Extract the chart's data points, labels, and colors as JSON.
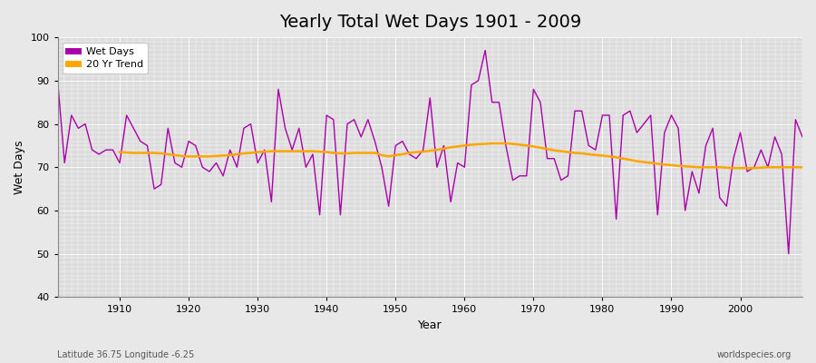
{
  "title": "Yearly Total Wet Days 1901 - 2009",
  "xlabel": "Year",
  "ylabel": "Wet Days",
  "years": [
    1901,
    1902,
    1903,
    1904,
    1905,
    1906,
    1907,
    1908,
    1909,
    1910,
    1911,
    1912,
    1913,
    1914,
    1915,
    1916,
    1917,
    1918,
    1919,
    1920,
    1921,
    1922,
    1923,
    1924,
    1925,
    1926,
    1927,
    1928,
    1929,
    1930,
    1931,
    1932,
    1933,
    1934,
    1935,
    1936,
    1937,
    1938,
    1939,
    1940,
    1941,
    1942,
    1943,
    1944,
    1945,
    1946,
    1947,
    1948,
    1949,
    1950,
    1951,
    1952,
    1953,
    1954,
    1955,
    1956,
    1957,
    1958,
    1959,
    1960,
    1961,
    1962,
    1963,
    1964,
    1965,
    1966,
    1967,
    1968,
    1969,
    1970,
    1971,
    1972,
    1973,
    1974,
    1975,
    1976,
    1977,
    1978,
    1979,
    1980,
    1981,
    1982,
    1983,
    1984,
    1985,
    1986,
    1987,
    1988,
    1989,
    1990,
    1991,
    1992,
    1993,
    1994,
    1995,
    1996,
    1997,
    1998,
    1999,
    2000,
    2001,
    2002,
    2003,
    2004,
    2005,
    2006,
    2007,
    2008,
    2009
  ],
  "wet_days": [
    90,
    71,
    82,
    79,
    80,
    74,
    73,
    74,
    74,
    71,
    82,
    79,
    76,
    75,
    65,
    66,
    79,
    71,
    70,
    76,
    75,
    70,
    69,
    71,
    68,
    74,
    70,
    79,
    80,
    71,
    74,
    62,
    88,
    79,
    74,
    79,
    70,
    73,
    59,
    82,
    81,
    59,
    80,
    81,
    77,
    81,
    76,
    70,
    61,
    75,
    76,
    73,
    72,
    74,
    86,
    70,
    75,
    62,
    71,
    70,
    89,
    90,
    97,
    85,
    85,
    75,
    67,
    68,
    68,
    88,
    85,
    72,
    72,
    67,
    68,
    83,
    83,
    75,
    74,
    82,
    82,
    58,
    82,
    83,
    78,
    80,
    82,
    59,
    78,
    82,
    79,
    60,
    69,
    64,
    75,
    79,
    63,
    61,
    72,
    78,
    69,
    70,
    74,
    70,
    77,
    73,
    50,
    81,
    77
  ],
  "trend_years": [
    1910,
    1911,
    1912,
    1913,
    1914,
    1915,
    1916,
    1917,
    1918,
    1919,
    1920,
    1921,
    1922,
    1923,
    1924,
    1925,
    1926,
    1927,
    1928,
    1929,
    1930,
    1931,
    1932,
    1933,
    1934,
    1935,
    1936,
    1937,
    1938,
    1939,
    1940,
    1941,
    1942,
    1943,
    1944,
    1945,
    1946,
    1947,
    1948,
    1949,
    1950,
    1951,
    1952,
    1953,
    1954,
    1955,
    1956,
    1957,
    1958,
    1959,
    1960,
    1961,
    1962,
    1963,
    1964,
    1965,
    1966,
    1967,
    1968,
    1969,
    1970,
    1971,
    1972,
    1973,
    1974,
    1975,
    1976,
    1977,
    1978,
    1979,
    1980,
    1981,
    1982,
    1983,
    1984,
    1985,
    1986,
    1987,
    1988,
    1989,
    1990,
    1991,
    1992,
    1993,
    1994,
    1995,
    1996,
    1997,
    1998,
    1999,
    2000,
    2001,
    2002,
    2003,
    2004,
    2005,
    2006,
    2007,
    2008,
    2009
  ],
  "trend_values": [
    73.5,
    73.4,
    73.3,
    73.3,
    73.3,
    73.3,
    73.2,
    73.0,
    72.8,
    72.6,
    72.5,
    72.5,
    72.5,
    72.5,
    72.6,
    72.7,
    72.8,
    73.0,
    73.2,
    73.3,
    73.5,
    73.6,
    73.7,
    73.7,
    73.7,
    73.7,
    73.7,
    73.7,
    73.7,
    73.6,
    73.5,
    73.3,
    73.2,
    73.2,
    73.3,
    73.3,
    73.3,
    73.3,
    72.8,
    72.5,
    72.8,
    73.0,
    73.3,
    73.5,
    73.6,
    73.8,
    74.0,
    74.3,
    74.6,
    74.8,
    75.0,
    75.2,
    75.3,
    75.4,
    75.5,
    75.5,
    75.5,
    75.4,
    75.2,
    75.0,
    74.8,
    74.5,
    74.2,
    73.9,
    73.7,
    73.5,
    73.3,
    73.2,
    73.0,
    72.8,
    72.7,
    72.5,
    72.3,
    72.0,
    71.7,
    71.4,
    71.2,
    71.0,
    70.8,
    70.6,
    70.5,
    70.3,
    70.2,
    70.1,
    70.0,
    70.0,
    70.0,
    70.0,
    69.9,
    69.8,
    69.8,
    69.8,
    69.8,
    69.9,
    70.0,
    70.0,
    70.0,
    70.0,
    70.0,
    70.0
  ],
  "wet_days_color": "#aa00aa",
  "trend_color": "#ffa500",
  "bg_color": "#e8e8e8",
  "plot_bg_color": "#dcdcdc",
  "grid_color": "#ffffff",
  "ylim": [
    40,
    100
  ],
  "xlim": [
    1901,
    2009
  ],
  "yticks": [
    40,
    50,
    60,
    70,
    80,
    90,
    100
  ],
  "xticks": [
    1910,
    1920,
    1930,
    1940,
    1950,
    1960,
    1970,
    1980,
    1990,
    2000
  ],
  "title_fontsize": 14,
  "label_fontsize": 9,
  "tick_fontsize": 8,
  "bottom_left_text": "Latitude 36.75 Longitude -6.25",
  "bottom_right_text": "worldspecies.org"
}
